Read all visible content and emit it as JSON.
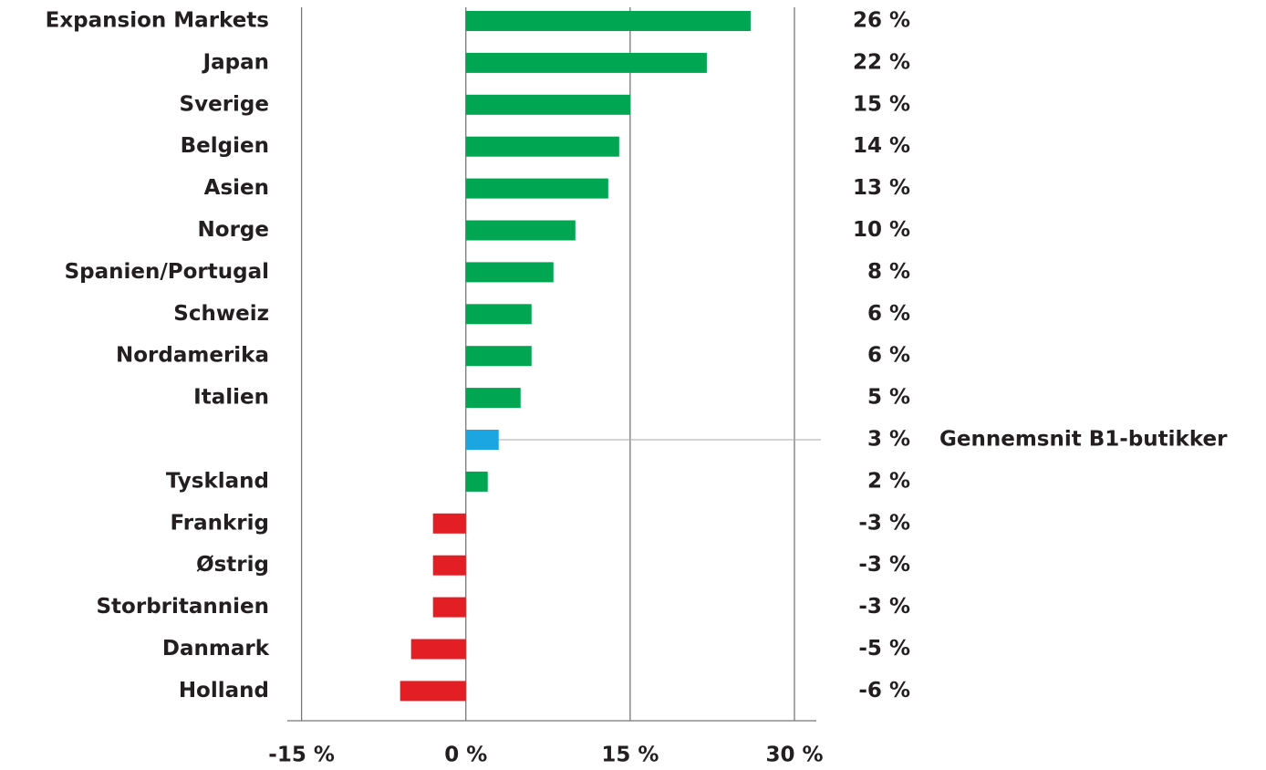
{
  "chart_data": {
    "type": "barh",
    "categories": [
      "Expansion Markets",
      "Japan",
      "Sverige",
      "Belgien",
      "Asien",
      "Norge",
      "Spanien/Portugal",
      "Schweiz",
      "Nordamerika",
      "Italien",
      null,
      "Tyskland",
      "Frankrig",
      "Østrig",
      "Storbritannien",
      "Danmark",
      "Holland"
    ],
    "values": [
      26,
      22,
      15,
      14,
      13,
      10,
      8,
      6,
      6,
      5,
      3,
      2,
      -3,
      -3,
      -3,
      -5,
      -6
    ],
    "value_labels": [
      "26 %",
      "22 %",
      "15 %",
      "14 %",
      "13 %",
      "10 %",
      "8 %",
      "6 %",
      "6 %",
      "5 %",
      "3 %",
      "2 %",
      "-3 %",
      "-3 %",
      "-3 %",
      "-5 %",
      "-6 %"
    ],
    "colors": [
      "#00a651",
      "#00a651",
      "#00a651",
      "#00a651",
      "#00a651",
      "#00a651",
      "#00a651",
      "#00a651",
      "#00a651",
      "#00a651",
      "#1ba6e1",
      "#00a651",
      "#e31e24",
      "#e31e24",
      "#e31e24",
      "#e31e24",
      "#e31e24"
    ],
    "annotation": "Gennemsnit B1-butikker",
    "xlim": [
      -16.3,
      32
    ],
    "xticks": [
      {
        "value": -15,
        "label": "-15 %"
      },
      {
        "value": 0,
        "label": "0 %"
      },
      {
        "value": 15,
        "label": "15 %"
      },
      {
        "value": 30,
        "label": "30 %"
      }
    ],
    "grid": true
  }
}
